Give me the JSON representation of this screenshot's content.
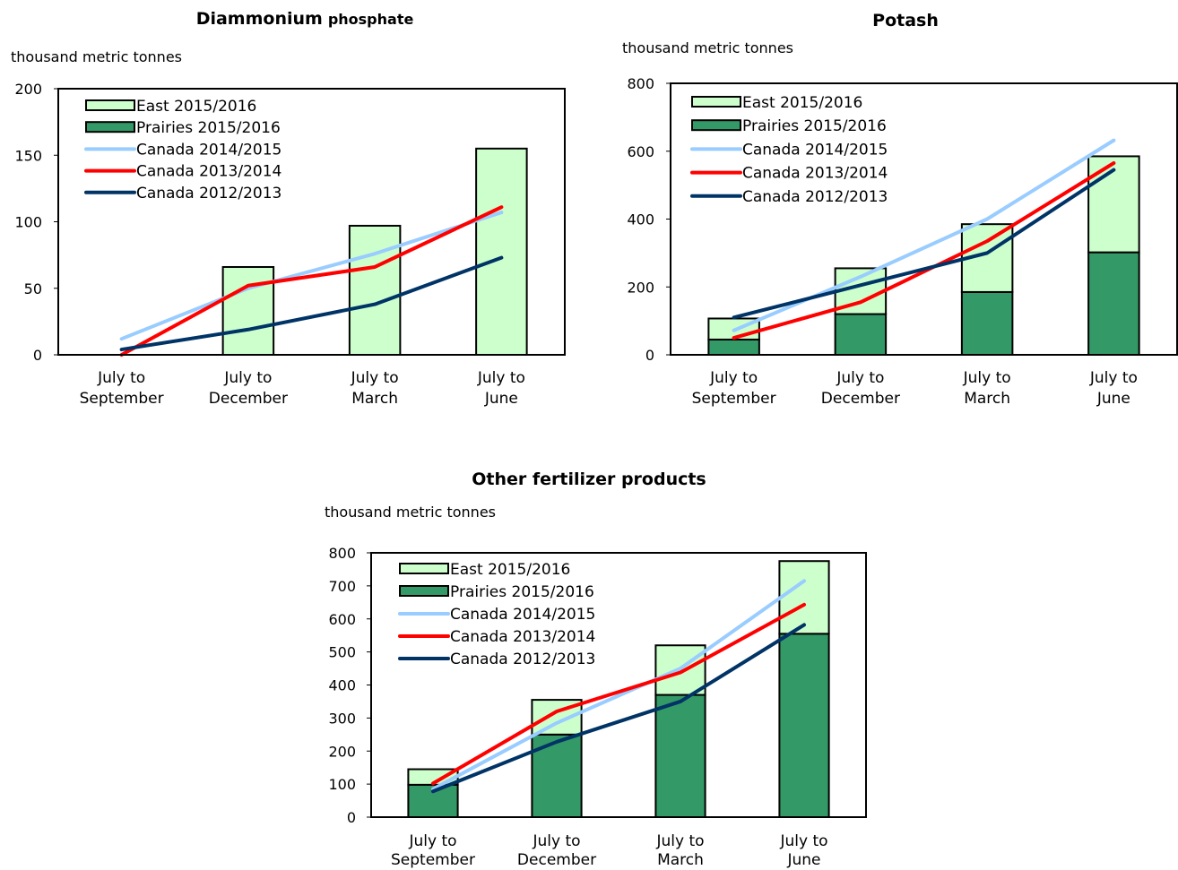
{
  "colors": {
    "east": "#ccffcc",
    "prairies": "#339966",
    "canada_2014_2015": "#99ccff",
    "canada_2013_2014": "#ff0000",
    "canada_2012_2013": "#003366"
  },
  "chart_data": [
    {
      "id": "dap",
      "type": "bar",
      "title_bold": "Diammonium",
      "title_rest": "phosphate",
      "unit_label": "thousand metric tonnes",
      "categories": [
        [
          "July to",
          "September"
        ],
        [
          "July to",
          "December"
        ],
        [
          "July to",
          "March"
        ],
        [
          "July to",
          "June"
        ]
      ],
      "ylim": [
        0,
        200
      ],
      "yticks": [
        "0",
        "50",
        "100",
        "150",
        "200"
      ],
      "bar_series": [
        {
          "name": "Prairies 2015/2016",
          "color_key": "prairies",
          "values": [
            0,
            0,
            0,
            0
          ]
        },
        {
          "name": "East 2015/2016",
          "color_key": "east",
          "values": [
            0,
            66,
            97,
            155
          ]
        }
      ],
      "line_series": [
        {
          "name": "Canada 2014/2015",
          "color_key": "canada_2014_2015",
          "values": [
            12,
            50,
            76,
            107
          ]
        },
        {
          "name": "Canada 2013/2014",
          "color_key": "canada_2013_2014",
          "values": [
            0,
            52,
            66,
            111
          ]
        },
        {
          "name": "Canada 2012/2013",
          "color_key": "canada_2012_2013",
          "values": [
            4,
            19,
            38,
            73
          ]
        }
      ],
      "legend": [
        "East 2015/2016",
        "Prairies 2015/2016",
        "Canada 2014/2015",
        "Canada 2013/2014",
        "Canada 2012/2013"
      ]
    },
    {
      "id": "potash",
      "type": "bar",
      "title_bold": "Potash",
      "title_rest": "",
      "unit_label": "thousand metric tonnes",
      "categories": [
        [
          "July to",
          "September"
        ],
        [
          "July to",
          "December"
        ],
        [
          "July to",
          "March"
        ],
        [
          "July to",
          "June"
        ]
      ],
      "ylim": [
        0,
        800
      ],
      "yticks": [
        "0",
        "200",
        "400",
        "600",
        "800"
      ],
      "bar_series": [
        {
          "name": "Prairies 2015/2016",
          "color_key": "prairies",
          "values": [
            45,
            120,
            185,
            302
          ]
        },
        {
          "name": "East 2015/2016",
          "color_key": "east",
          "values": [
            62,
            135,
            200,
            283
          ]
        }
      ],
      "line_series": [
        {
          "name": "Canada 2014/2015",
          "color_key": "canada_2014_2015",
          "values": [
            72,
            230,
            400,
            632
          ]
        },
        {
          "name": "Canada 2013/2014",
          "color_key": "canada_2013_2014",
          "values": [
            50,
            155,
            335,
            565
          ]
        },
        {
          "name": "Canada 2012/2013",
          "color_key": "canada_2012_2013",
          "values": [
            110,
            205,
            300,
            545
          ]
        }
      ],
      "legend": [
        "East 2015/2016",
        "Prairies 2015/2016",
        "Canada 2014/2015",
        "Canada 2013/2014",
        "Canada 2012/2013"
      ]
    },
    {
      "id": "other",
      "type": "bar",
      "title_bold": "Other fertilizer products",
      "title_rest": "",
      "unit_label": "thousand metric tonnes",
      "categories": [
        [
          "July to",
          "September"
        ],
        [
          "July to",
          "December"
        ],
        [
          "July to",
          "March"
        ],
        [
          "July to",
          "June"
        ]
      ],
      "ylim": [
        0,
        800
      ],
      "yticks": [
        "0",
        "100",
        "200",
        "300",
        "400",
        "500",
        "600",
        "700",
        "800"
      ],
      "bar_series": [
        {
          "name": "Prairies 2015/2016",
          "color_key": "prairies",
          "values": [
            98,
            250,
            370,
            555
          ]
        },
        {
          "name": "East 2015/2016",
          "color_key": "east",
          "values": [
            47,
            105,
            150,
            220
          ]
        }
      ],
      "line_series": [
        {
          "name": "Canada 2014/2015",
          "color_key": "canada_2014_2015",
          "values": [
            85,
            285,
            450,
            715
          ]
        },
        {
          "name": "Canada 2013/2014",
          "color_key": "canada_2013_2014",
          "values": [
            102,
            320,
            438,
            643
          ]
        },
        {
          "name": "Canada 2012/2013",
          "color_key": "canada_2012_2013",
          "values": [
            78,
            228,
            350,
            582
          ]
        }
      ],
      "legend": [
        "East 2015/2016",
        "Prairies 2015/2016",
        "Canada 2014/2015",
        "Canada 2013/2014",
        "Canada 2012/2013"
      ]
    }
  ]
}
